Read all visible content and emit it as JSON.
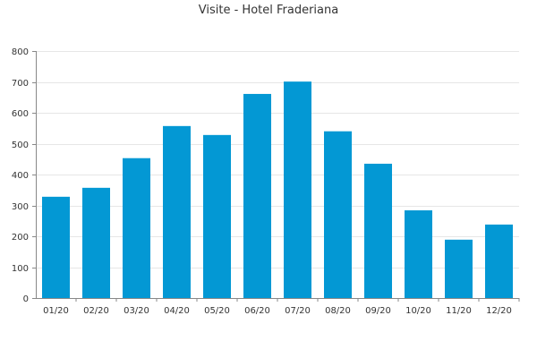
{
  "chart_data": {
    "type": "bar",
    "title": "Visite - Hotel Fraderiana",
    "xlabel": "",
    "ylabel": "",
    "categories": [
      "01/20",
      "02/20",
      "03/20",
      "04/20",
      "05/20",
      "06/20",
      "07/20",
      "08/20",
      "09/20",
      "10/20",
      "11/20",
      "12/20"
    ],
    "values": [
      328,
      357,
      453,
      557,
      528,
      661,
      701,
      540,
      435,
      284,
      189,
      238
    ],
    "ylim": [
      0,
      800
    ],
    "yticks": [
      0,
      100,
      200,
      300,
      400,
      500,
      600,
      700,
      800
    ],
    "grid": true,
    "legend": "none",
    "colors": {
      "bar": "#0398d4"
    }
  }
}
